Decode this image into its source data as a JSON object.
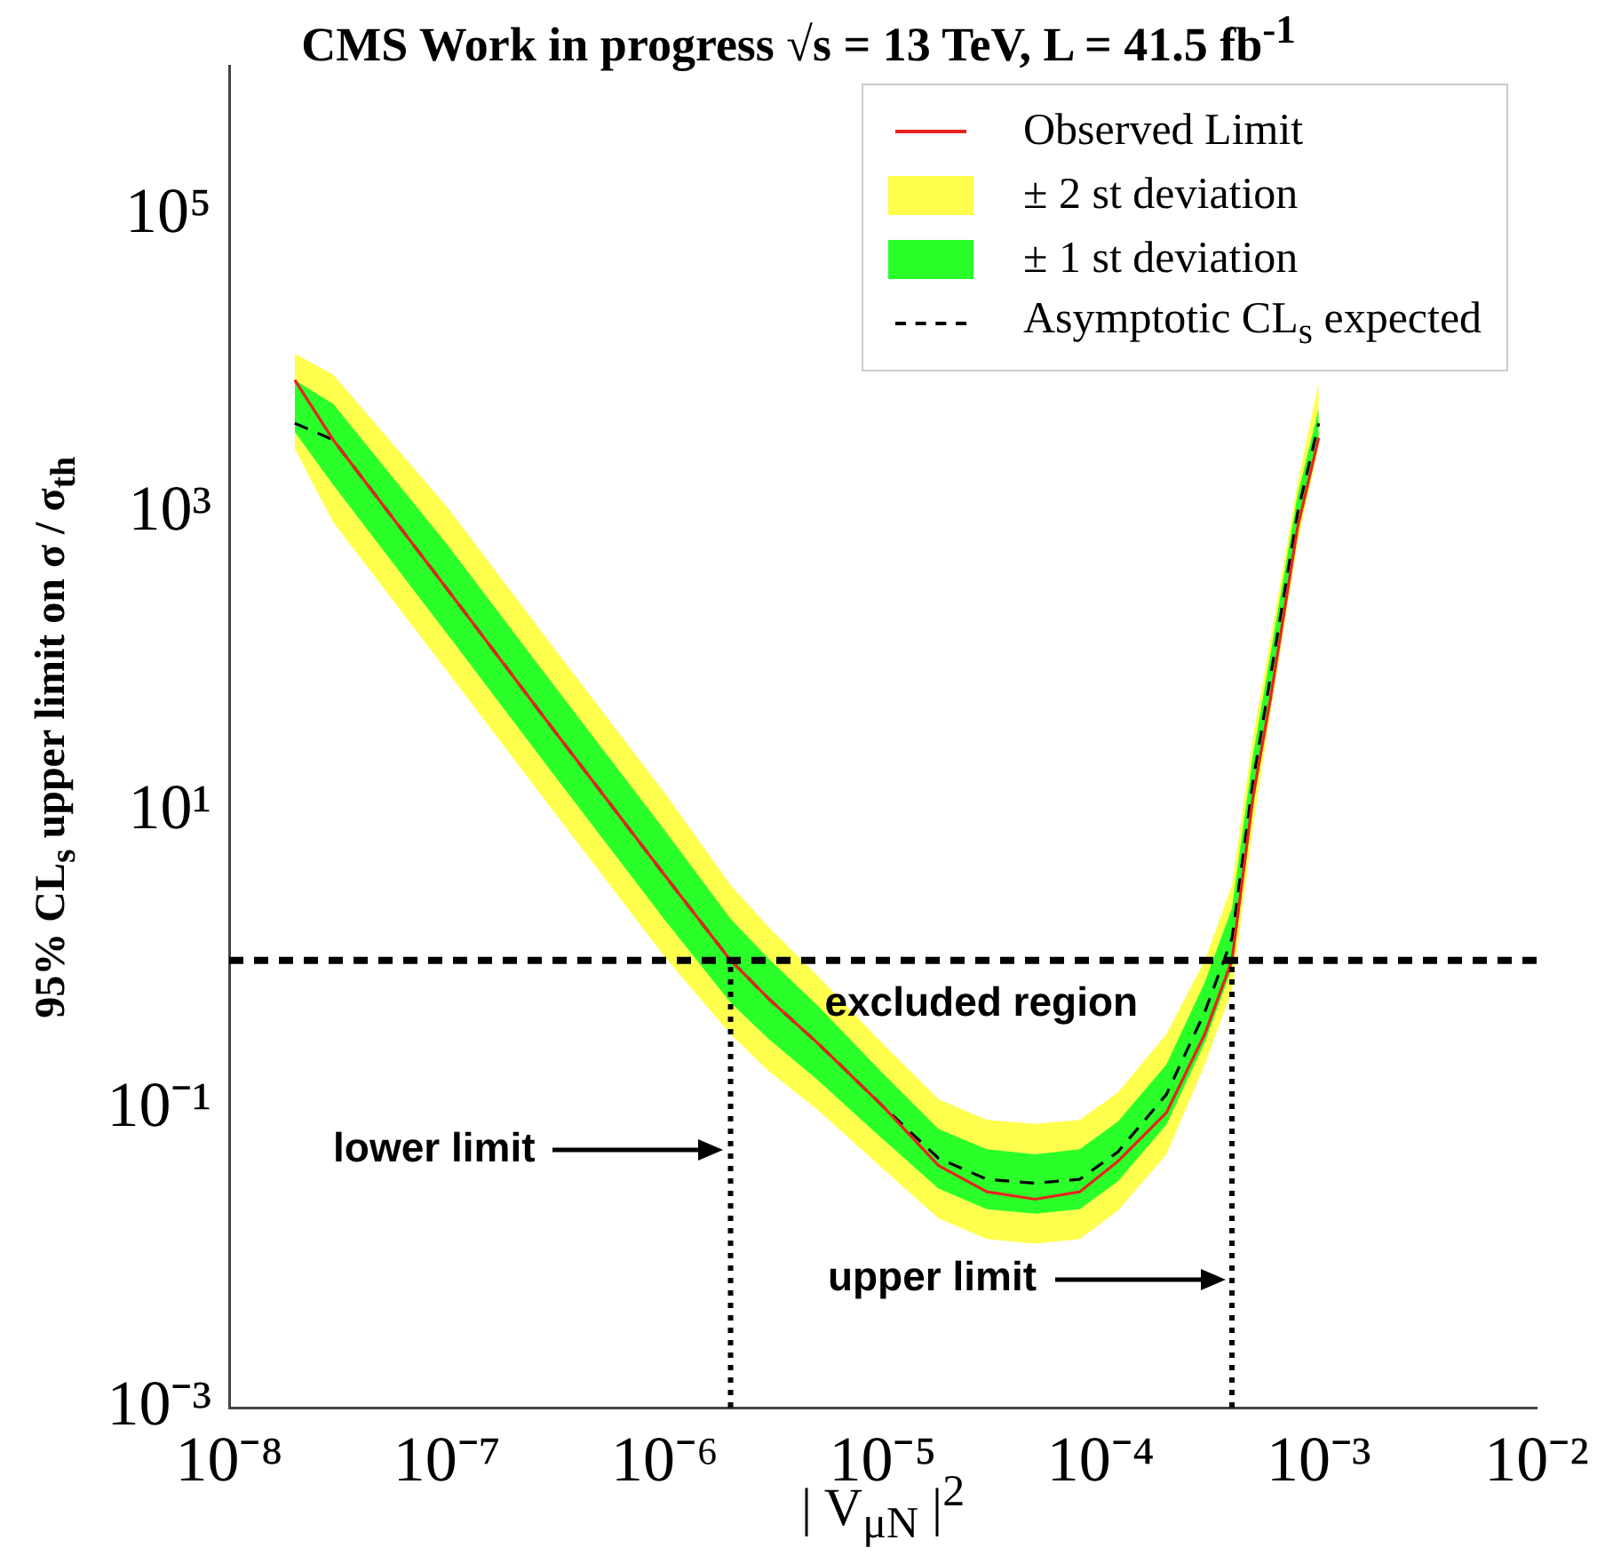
{
  "chart_data": {
    "type": "line",
    "title": "CMS Work in progress √s = 13 TeV, L = 41.5 fb$^{-1}$",
    "xlabel": "| V$_{μN}$ |$^{2}$",
    "ylabel": "95% CL$_{s}$ upper limit on σ / σ$_{th}$",
    "x": [
      2e-08,
      3e-08,
      1e-07,
      3e-07,
      1e-06,
      2e-06,
      3e-06,
      5e-06,
      1e-05,
      1.8e-05,
      3e-05,
      5e-05,
      8e-05,
      0.00012,
      0.0002,
      0.0003,
      0.0004,
      0.0005,
      0.0006,
      0.0008,
      0.001
    ],
    "series": [
      {
        "name": "Observed Limit",
        "type": "line",
        "color": "#e8231f",
        "values": [
          7800,
          3100,
          310,
          37,
          3.7,
          1.0,
          0.55,
          0.28,
          0.105,
          0.042,
          0.028,
          0.025,
          0.028,
          0.045,
          0.095,
          0.32,
          1.0,
          12.6,
          56,
          800,
          3200
        ]
      },
      {
        "name": "± 2 st deviation",
        "type": "area",
        "color": "#ffff4d",
        "values": [
          null,
          null,
          null,
          null,
          null,
          null,
          null,
          null,
          null,
          null,
          null,
          null,
          null,
          null,
          null,
          null,
          null,
          null,
          null,
          null,
          null
        ],
        "lower": [
          2700,
          870,
          87,
          10.5,
          1.05,
          0.32,
          0.18,
          0.1,
          0.04,
          0.0186,
          0.0135,
          0.0126,
          0.0135,
          0.021,
          0.05,
          0.2,
          0.63,
          8,
          45,
          630,
          2800
        ],
        "upper": [
          11700,
          8500,
          1100,
          132,
          13.2,
          3.2,
          1.66,
          0.79,
          0.275,
          0.117,
          0.085,
          0.08,
          0.085,
          0.13,
          0.32,
          1.0,
          3.2,
          32,
          141,
          1580,
          7500
        ]
      },
      {
        "name": "± 1 st deviation",
        "type": "area",
        "color": "#2aff2a",
        "values": [
          null,
          null,
          null,
          null,
          null,
          null,
          null,
          null,
          null,
          null,
          null,
          null,
          null,
          null,
          null,
          null,
          null,
          null,
          null,
          null,
          null
        ],
        "lower": [
          3500,
          1550,
          155,
          18.6,
          1.86,
          0.52,
          0.295,
          0.158,
          0.063,
          0.0295,
          0.0214,
          0.02,
          0.0214,
          0.033,
          0.079,
          0.28,
          0.89,
          10.5,
          56,
          760,
          3200
        ],
        "upper": [
          7800,
          5400,
          617,
          74,
          7.4,
          1.9,
          1.02,
          0.5,
          0.174,
          0.074,
          0.054,
          0.05,
          0.054,
          0.083,
          0.2,
          0.71,
          2.24,
          24,
          112,
          1320,
          5000
        ]
      },
      {
        "name": "Asymptotic CL$_{s}$ expected",
        "type": "line",
        "color": "#000000",
        "line_style": "dashed",
        "values": [
          4000,
          3100,
          310,
          37,
          3.7,
          1.0,
          0.55,
          0.28,
          0.105,
          0.047,
          0.034,
          0.032,
          0.034,
          0.052,
          0.126,
          0.45,
          1.4,
          16,
          79,
          1000,
          4000
        ]
      }
    ],
    "log": "xy",
    "xlim": [
      1e-08,
      0.01
    ],
    "xticks": [
      {
        "value": 1e-08,
        "label": "10⁻⁸"
      },
      {
        "value": 1e-07,
        "label": "10⁻⁷"
      },
      {
        "value": 1e-06,
        "label": "10⁻⁶"
      },
      {
        "value": 1e-05,
        "label": "10⁻⁵"
      },
      {
        "value": 0.0001,
        "label": "10⁻⁴"
      },
      {
        "value": 0.001,
        "label": "10⁻³"
      },
      {
        "value": 0.01,
        "label": "10⁻²"
      }
    ],
    "ylim": [
      0.001,
      1000000.0
    ],
    "yticks": [
      {
        "value": 0.001,
        "label": "10⁻³"
      },
      {
        "value": 0.1,
        "label": "10⁻¹"
      },
      {
        "value": 10,
        "label": "10¹"
      },
      {
        "value": 1000,
        "label": "10³"
      },
      {
        "value": 100000,
        "label": "10⁵"
      }
    ],
    "ref_lines": [
      {
        "axis": "y",
        "value": 1,
        "label": "excluded region",
        "line_style": "dashed",
        "color": "#000000"
      },
      {
        "axis": "x",
        "value": 2e-06,
        "line_style": "dotted",
        "color": "#000000"
      },
      {
        "axis": "x",
        "value": 0.0004,
        "line_style": "dotted",
        "color": "#000000"
      }
    ],
    "annotations": [
      "lower limit",
      "upper limit"
    ],
    "legend": "top right",
    "marker": "none",
    "grid": false
  }
}
